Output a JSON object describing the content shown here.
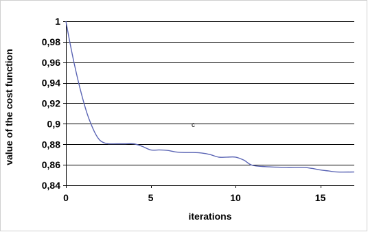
{
  "chart_data": {
    "type": "line",
    "title": "",
    "xlabel": "iterations",
    "ylabel": "value of the cost function",
    "xlim": [
      0,
      17
    ],
    "ylim": [
      0.84,
      1.0
    ],
    "x_ticks": [
      0,
      5,
      10,
      15
    ],
    "x_tick_labels": [
      "0",
      "5",
      "10",
      "15"
    ],
    "y_ticks": [
      0.84,
      0.86,
      0.88,
      0.9,
      0.92,
      0.94,
      0.96,
      0.98,
      1.0
    ],
    "y_tick_labels": [
      "0,84",
      "0,86",
      "0,88",
      "0,9",
      "0,92",
      "0,94",
      "0,96",
      "0,98",
      "1"
    ],
    "grid": "horizontal",
    "legend": "none",
    "series": [
      {
        "color": "#5a64b4",
        "x": [
          0,
          0.25,
          0.5,
          0.75,
          1.0,
          1.25,
          1.5,
          1.75,
          2.0,
          2.25,
          2.5,
          3.0,
          3.5,
          4.0,
          4.5,
          5.0,
          5.5,
          6.0,
          6.5,
          7.0,
          7.5,
          8.0,
          8.5,
          9.0,
          9.5,
          10.0,
          10.5,
          11.0,
          12.0,
          13.0,
          14.0,
          14.5,
          15.0,
          15.5,
          16.0,
          17.0
        ],
        "y": [
          1.0,
          0.978,
          0.958,
          0.94,
          0.924,
          0.91,
          0.899,
          0.89,
          0.884,
          0.8815,
          0.8805,
          0.8805,
          0.8805,
          0.8805,
          0.878,
          0.8745,
          0.8745,
          0.874,
          0.8725,
          0.872,
          0.872,
          0.8715,
          0.87,
          0.8675,
          0.8675,
          0.8675,
          0.8645,
          0.8595,
          0.858,
          0.8575,
          0.8575,
          0.8565,
          0.855,
          0.854,
          0.853,
          0.853
        ]
      }
    ]
  }
}
